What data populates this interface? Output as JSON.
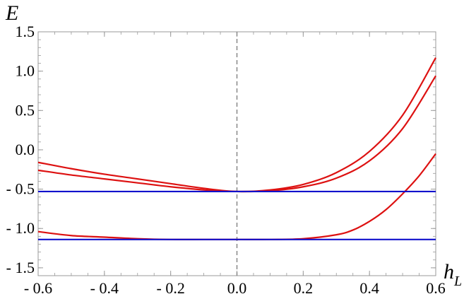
{
  "chart_data": {
    "type": "line",
    "title": "",
    "xlabel": {
      "main": "h",
      "sub": "L"
    },
    "ylabel": "E",
    "xlim": [
      -0.6,
      0.6
    ],
    "ylim": [
      -1.6,
      1.5
    ],
    "xticks": [
      -0.6,
      -0.4,
      -0.2,
      0.0,
      0.2,
      0.4,
      0.6
    ],
    "xtick_labels": [
      "- 0.6",
      "- 0.4",
      "- 0.2",
      "0.0",
      "0.2",
      "0.4",
      "0.6"
    ],
    "yticks": [
      1.5,
      1.0,
      0.5,
      0.0,
      -0.5,
      -1.0,
      -1.5
    ],
    "ytick_labels": [
      "1.5",
      "1.0",
      "0.5",
      "0.0",
      "- 0.5",
      "- 1.0",
      "- 1.5"
    ],
    "grid": false,
    "reference_line": {
      "x": 0.0,
      "style": "dashed",
      "color": "#888888"
    },
    "series": [
      {
        "color": "#dd1111",
        "x": [
          -0.6,
          -0.5,
          -0.4,
          -0.3,
          -0.2,
          -0.1,
          0.0,
          0.1,
          0.2,
          0.3,
          0.4,
          0.5,
          0.6
        ],
        "y": [
          -0.16,
          -0.24,
          -0.31,
          -0.37,
          -0.43,
          -0.49,
          -0.53,
          -0.51,
          -0.44,
          -0.29,
          -0.02,
          0.44,
          1.17
        ]
      },
      {
        "color": "#dd1111",
        "x": [
          -0.6,
          -0.5,
          -0.4,
          -0.3,
          -0.2,
          -0.1,
          0.0,
          0.1,
          0.2,
          0.3,
          0.4,
          0.5,
          0.6
        ],
        "y": [
          -0.26,
          -0.32,
          -0.37,
          -0.42,
          -0.47,
          -0.51,
          -0.53,
          -0.52,
          -0.47,
          -0.36,
          -0.14,
          0.27,
          0.94
        ]
      },
      {
        "color": "#dd1111",
        "x": [
          -0.6,
          -0.5,
          -0.4,
          -0.3,
          -0.2,
          -0.1,
          0.0,
          0.1,
          0.2,
          0.3,
          0.35,
          0.4,
          0.45,
          0.5,
          0.55,
          0.6
        ],
        "y": [
          -1.04,
          -1.09,
          -1.11,
          -1.13,
          -1.14,
          -1.14,
          -1.14,
          -1.14,
          -1.13,
          -1.08,
          -1.02,
          -0.91,
          -0.76,
          -0.56,
          -0.33,
          -0.05
        ]
      },
      {
        "color": "#1111cc",
        "x": [
          -0.6,
          0.6
        ],
        "y": [
          -0.53,
          -0.53
        ]
      },
      {
        "color": "#1111cc",
        "x": [
          -0.6,
          0.6
        ],
        "y": [
          -1.14,
          -1.14
        ]
      }
    ]
  }
}
